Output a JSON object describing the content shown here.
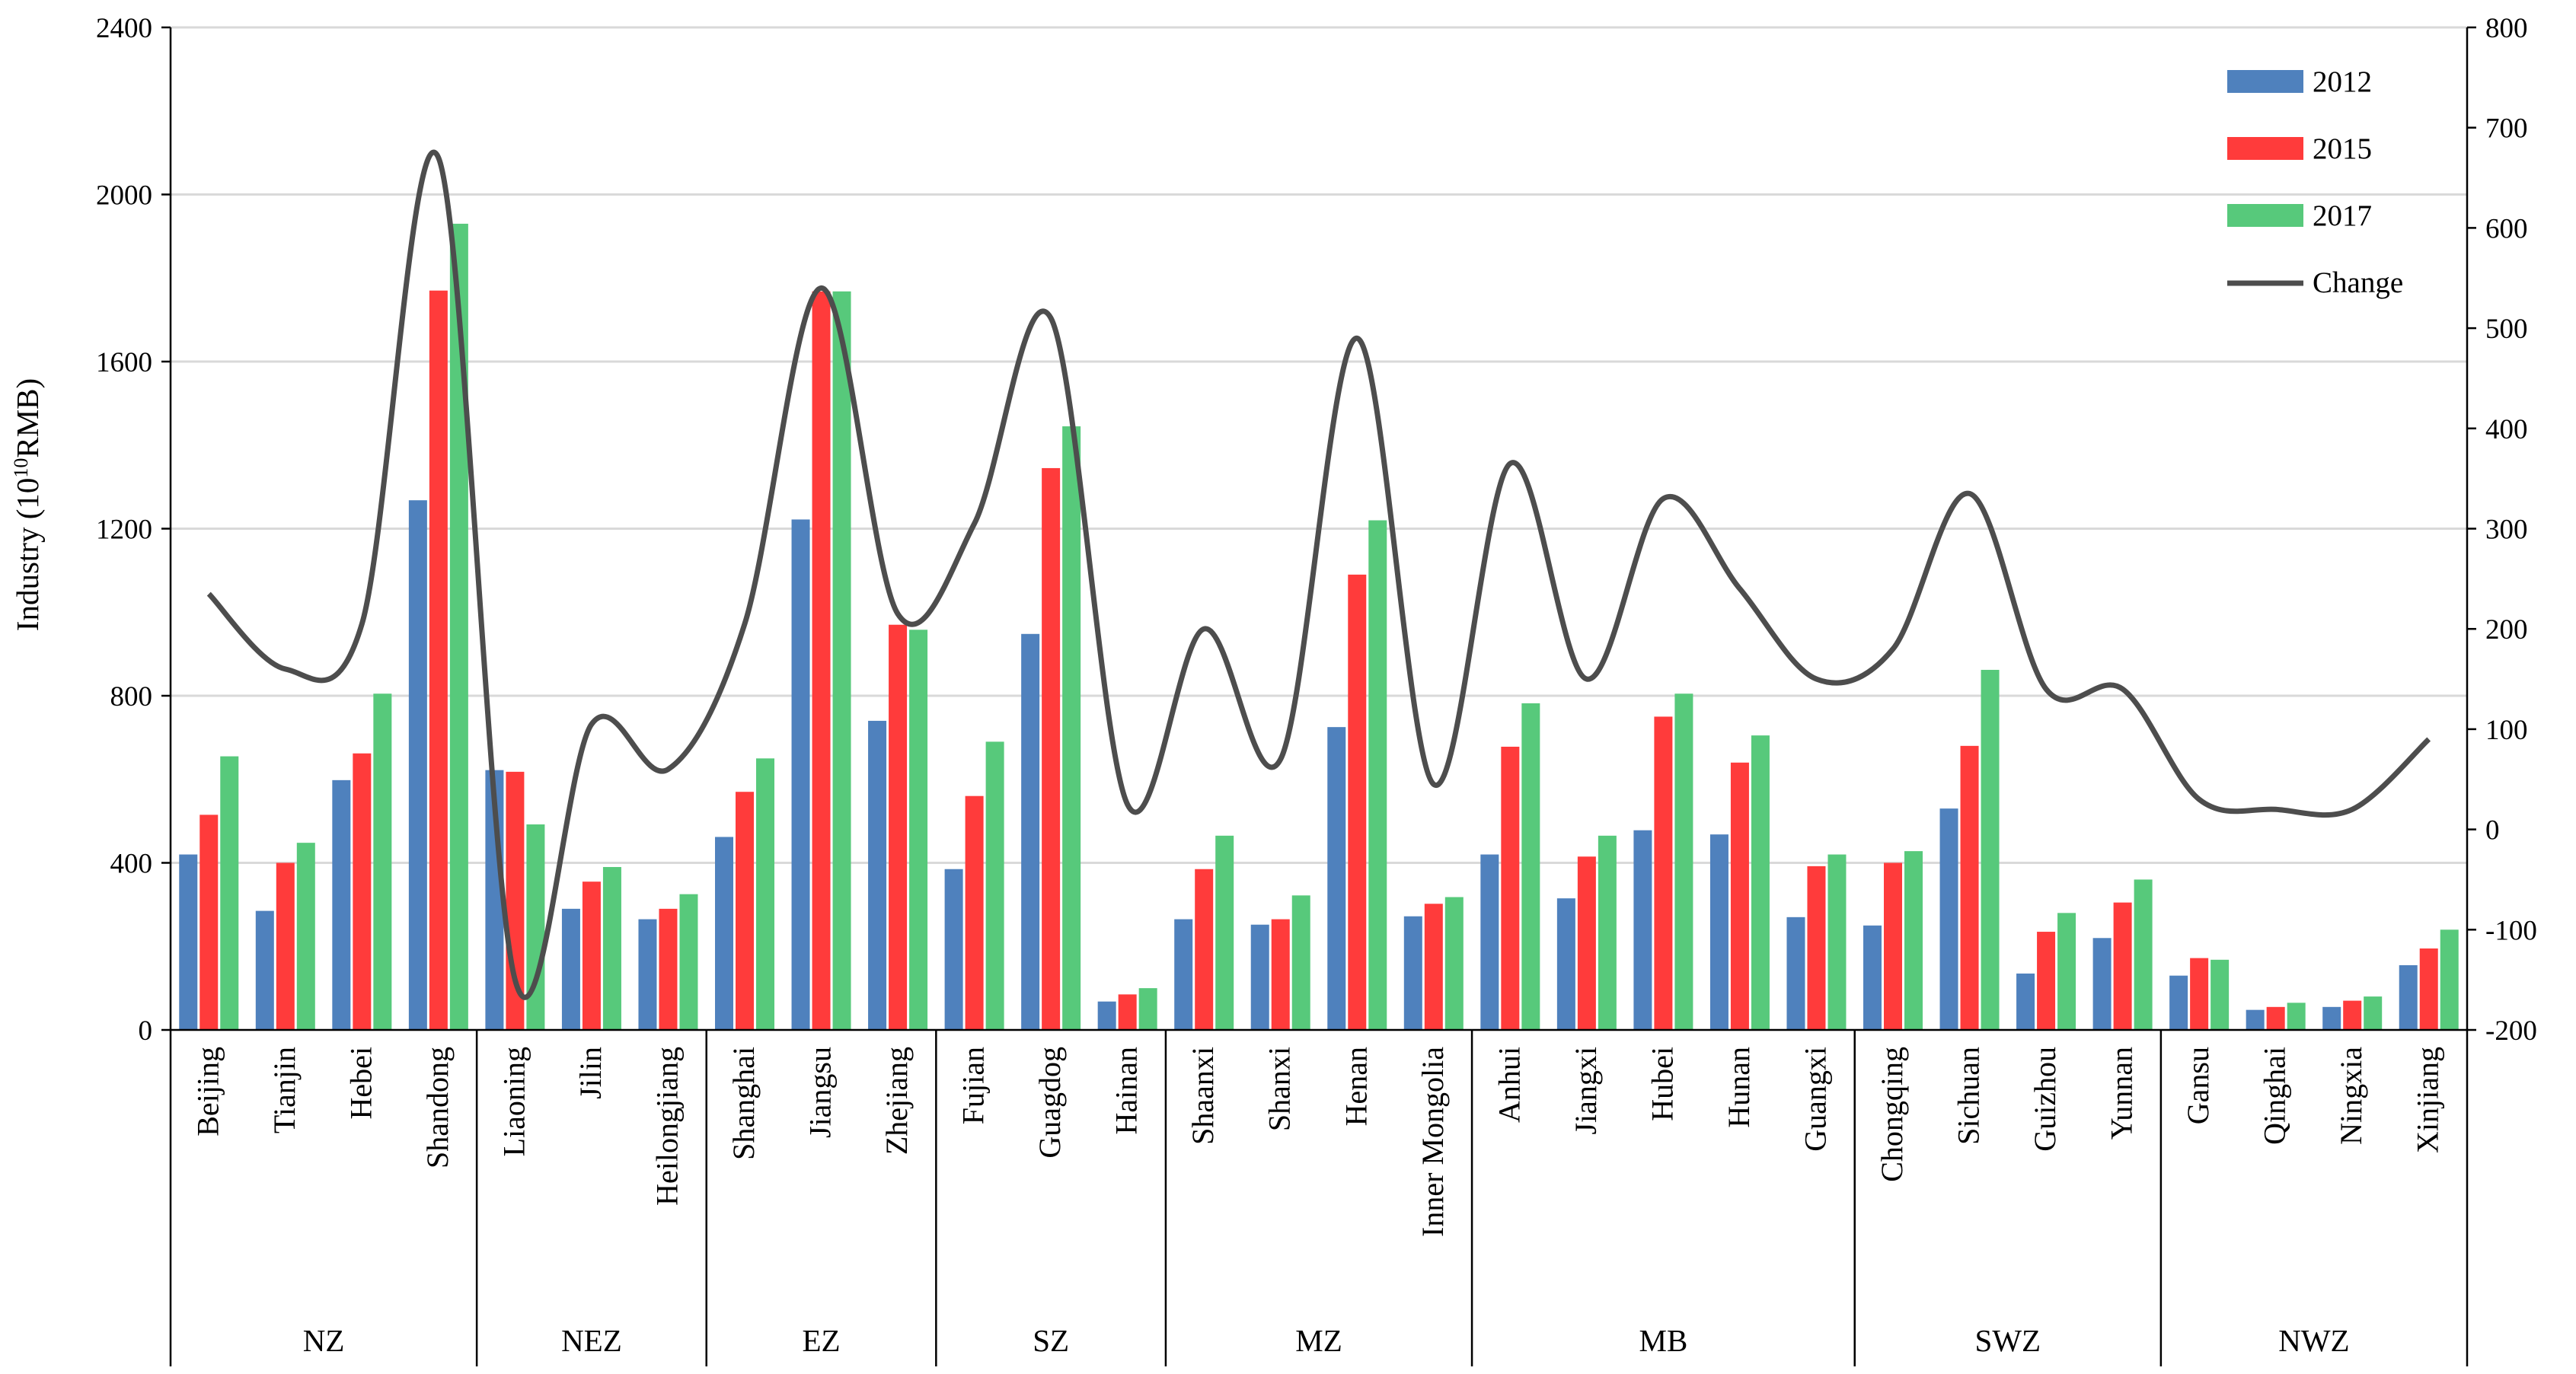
{
  "chart_data": {
    "type": "bar",
    "ylabel": "Industry (10",
    "ylabel_sup": "10",
    "ylabel_end": "RMB)",
    "ylim": [
      0,
      2400
    ],
    "yticks": [
      0,
      400,
      800,
      1200,
      1600,
      2000,
      2400
    ],
    "y2lim": [
      -200,
      800
    ],
    "y2ticks": [
      -200,
      -100,
      0,
      100,
      200,
      300,
      400,
      500,
      600,
      700,
      800
    ],
    "grid": true,
    "legend_position": "top-right",
    "categories": [
      "Beijing",
      "Tianjin",
      "Hebei",
      "Shandong",
      "Liaoning",
      "Jilin",
      "Heilongjiang",
      "Shanghai",
      "Jiangsu",
      "Zhejiang",
      "Fujian",
      "Guagdog",
      "Hainan",
      "Shaanxi",
      "Shanxi",
      "Henan",
      "Inner Mongolia",
      "Anhui",
      "Jiangxi",
      "Hubei",
      "Hunan",
      "Guangxi",
      "Chongqing",
      "Sichuan",
      "Guizhou",
      "Yunnan",
      "Gansu",
      "Qinghai",
      "Ningxia",
      "Xinjiang"
    ],
    "groups": [
      {
        "name": "NZ",
        "count": 4
      },
      {
        "name": "NEZ",
        "count": 3
      },
      {
        "name": "EZ",
        "count": 3
      },
      {
        "name": "SZ",
        "count": 3
      },
      {
        "name": "MZ",
        "count": 4
      },
      {
        "name": "MB",
        "count": 5
      },
      {
        "name": "SWZ",
        "count": 4
      },
      {
        "name": "NWZ",
        "count": 4
      }
    ],
    "series": [
      {
        "name": "2012",
        "color": "#4f81bd",
        "values": [
          420,
          285,
          598,
          1268,
          622,
          290,
          265,
          462,
          1222,
          740,
          385,
          948,
          68,
          265,
          252,
          725,
          272,
          420,
          315,
          478,
          468,
          270,
          250,
          530,
          135,
          220,
          130,
          48,
          55,
          155
        ]
      },
      {
        "name": "2015",
        "color": "#ff3b3b",
        "values": [
          515,
          400,
          662,
          1770,
          618,
          355,
          290,
          570,
          1768,
          970,
          560,
          1345,
          85,
          385,
          265,
          1090,
          302,
          678,
          415,
          750,
          640,
          392,
          400,
          680,
          235,
          305,
          172,
          55,
          70,
          195
        ]
      },
      {
        "name": "2017",
        "color": "#57c97b",
        "values": [
          655,
          448,
          805,
          1930,
          492,
          390,
          325,
          650,
          1768,
          958,
          690,
          1445,
          100,
          465,
          322,
          1220,
          318,
          782,
          465,
          805,
          705,
          420,
          428,
          862,
          280,
          360,
          168,
          65,
          80,
          240
        ]
      }
    ],
    "line": {
      "name": "Change",
      "color": "#4d4d4d",
      "values": [
        235,
        160,
        205,
        670,
        -150,
        105,
        60,
        205,
        540,
        215,
        305,
        510,
        25,
        200,
        70,
        490,
        45,
        365,
        150,
        330,
        240,
        150,
        180,
        335,
        140,
        140,
        30,
        20,
        20,
        90
      ]
    }
  }
}
